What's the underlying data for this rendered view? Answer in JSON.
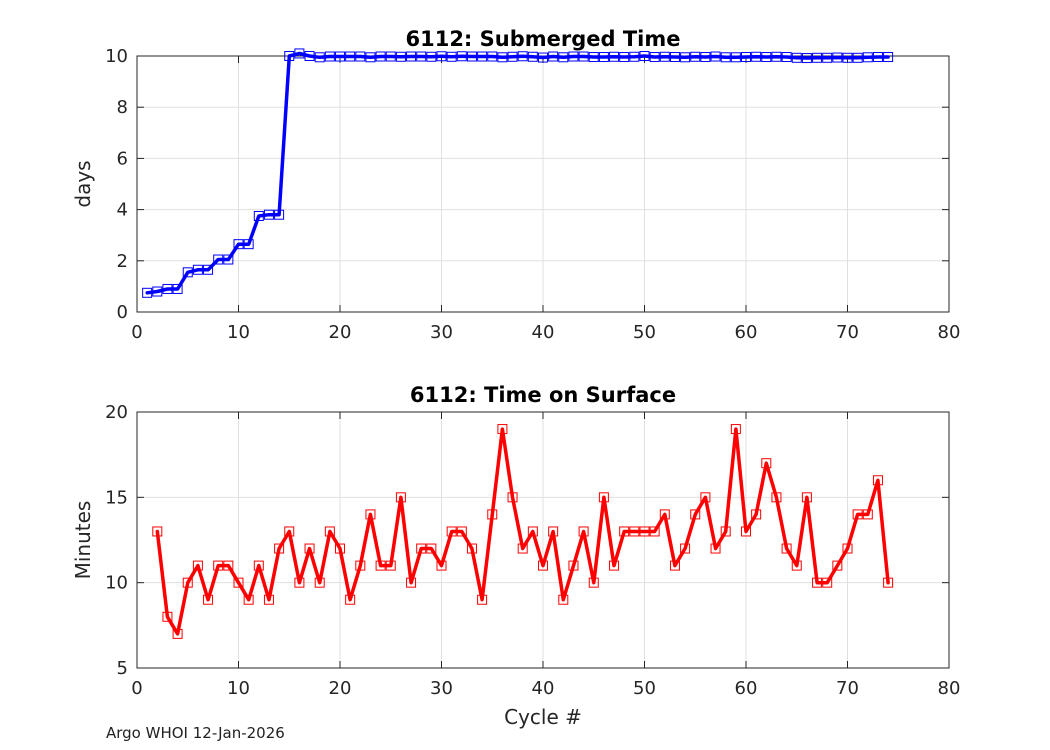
{
  "footer": "Argo WHOI 12-Jan-2026",
  "chart_data": [
    {
      "type": "line",
      "title": "6112: Submerged Time",
      "xlabel": "",
      "ylabel": "days",
      "xlim": [
        0,
        80
      ],
      "ylim": [
        0,
        10
      ],
      "xticks": [
        0,
        10,
        20,
        30,
        40,
        50,
        60,
        70,
        80
      ],
      "yticks": [
        0,
        2,
        4,
        6,
        8,
        10
      ],
      "grid": true,
      "color": "#0000ff",
      "marker": "square",
      "series": [
        {
          "name": "Submerged Time",
          "x": [
            1,
            2,
            3,
            4,
            5,
            6,
            7,
            8,
            9,
            10,
            11,
            12,
            13,
            14,
            15,
            16,
            17,
            18,
            19,
            20,
            21,
            22,
            23,
            24,
            25,
            26,
            27,
            28,
            29,
            30,
            31,
            32,
            33,
            34,
            35,
            36,
            37,
            38,
            39,
            40,
            41,
            42,
            43,
            44,
            45,
            46,
            47,
            48,
            49,
            50,
            51,
            52,
            53,
            54,
            55,
            56,
            57,
            58,
            59,
            60,
            61,
            62,
            63,
            64,
            65,
            66,
            67,
            68,
            69,
            70,
            71,
            72,
            73,
            74
          ],
          "values": [
            0.75,
            0.8,
            0.9,
            0.9,
            1.55,
            1.65,
            1.65,
            2.05,
            2.05,
            2.65,
            2.65,
            3.75,
            3.8,
            3.8,
            10.0,
            10.1,
            10.0,
            9.95,
            9.98,
            9.98,
            9.98,
            9.98,
            9.95,
            9.98,
            9.98,
            9.97,
            9.98,
            9.98,
            9.97,
            9.99,
            9.97,
            9.99,
            9.98,
            9.98,
            9.98,
            9.95,
            9.97,
            9.99,
            9.97,
            9.94,
            9.98,
            9.95,
            9.98,
            9.98,
            9.96,
            9.96,
            9.97,
            9.96,
            9.97,
            10.0,
            9.96,
            9.97,
            9.96,
            9.95,
            9.97,
            9.96,
            9.98,
            9.95,
            9.95,
            9.96,
            9.97,
            9.96,
            9.97,
            9.96,
            9.93,
            9.92,
            9.93,
            9.93,
            9.94,
            9.93,
            9.93,
            9.95,
            9.96,
            9.96
          ]
        }
      ]
    },
    {
      "type": "line",
      "title": "6112: Time on Surface",
      "xlabel": "Cycle #",
      "ylabel": "Minutes",
      "xlim": [
        0,
        80
      ],
      "ylim": [
        5,
        20
      ],
      "xticks": [
        0,
        10,
        20,
        30,
        40,
        50,
        60,
        70,
        80
      ],
      "yticks": [
        5,
        10,
        15,
        20
      ],
      "grid": true,
      "color": "#ff0000",
      "marker": "square",
      "series": [
        {
          "name": "Time on Surface",
          "x": [
            2,
            3,
            4,
            5,
            6,
            7,
            8,
            9,
            10,
            11,
            12,
            13,
            14,
            15,
            16,
            17,
            18,
            19,
            20,
            21,
            22,
            23,
            24,
            25,
            26,
            27,
            28,
            29,
            30,
            31,
            32,
            33,
            34,
            35,
            36,
            37,
            38,
            39,
            40,
            41,
            42,
            43,
            44,
            45,
            46,
            47,
            48,
            49,
            50,
            51,
            52,
            53,
            54,
            55,
            56,
            57,
            58,
            59,
            60,
            61,
            62,
            63,
            64,
            65,
            66,
            67,
            68,
            69,
            70,
            71,
            72,
            73,
            74
          ],
          "values": [
            13,
            8,
            7,
            10,
            11,
            9,
            11,
            11,
            10,
            9,
            11,
            9,
            12,
            13,
            10,
            12,
            10,
            13,
            12,
            9,
            11,
            14,
            11,
            11,
            15,
            10,
            12,
            12,
            11,
            13,
            13,
            12,
            9,
            14,
            19,
            15,
            12,
            13,
            11,
            13,
            9,
            11,
            13,
            10,
            15,
            11,
            13,
            13,
            13,
            13,
            14,
            11,
            12,
            14,
            15,
            12,
            13,
            19,
            13,
            14,
            17,
            15,
            12,
            11,
            15,
            10,
            10,
            11,
            12,
            14,
            14,
            16,
            10
          ]
        }
      ]
    }
  ]
}
